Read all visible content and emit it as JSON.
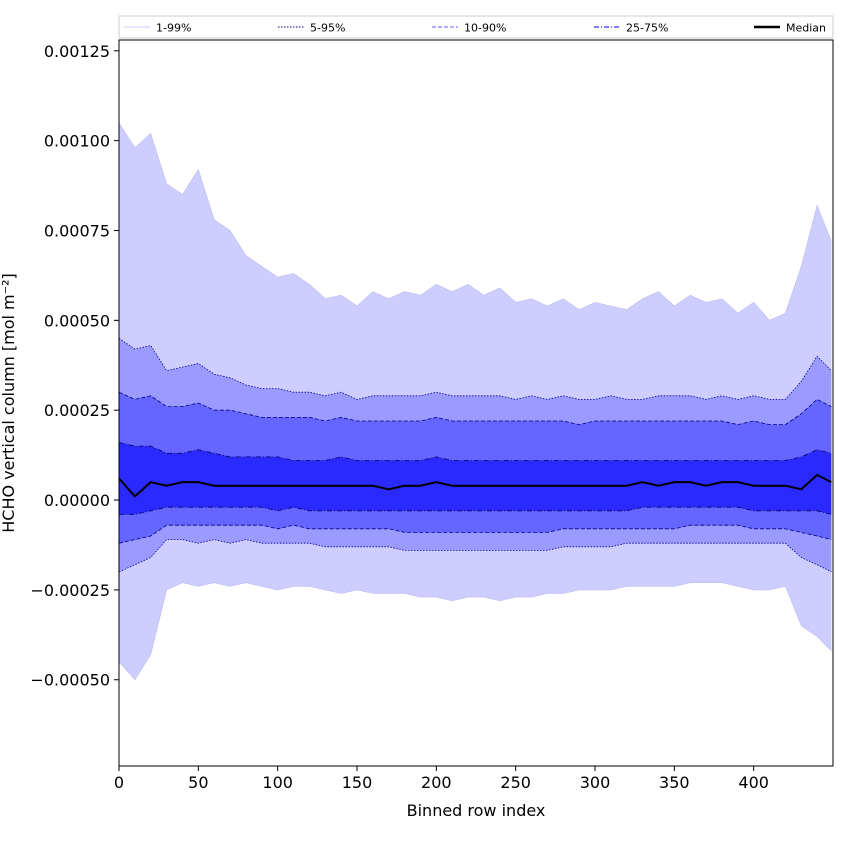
{
  "chart_data": {
    "type": "area",
    "xlabel": "Binned row index",
    "ylabel": "HCHO vertical column [mol m⁻²]",
    "xlim": [
      0,
      450
    ],
    "ylim": [
      -0.00074,
      0.00128
    ],
    "x_ticks": [
      0,
      50,
      100,
      150,
      200,
      250,
      300,
      350,
      400
    ],
    "x_tick_labels": [
      "0",
      "50",
      "100",
      "150",
      "200",
      "250",
      "300",
      "350",
      "400"
    ],
    "y_ticks": [
      -0.0005,
      -0.00025,
      0.0,
      0.00025,
      0.0005,
      0.00075,
      0.001,
      0.00125
    ],
    "y_tick_labels": [
      "−0.00050",
      "−0.00025",
      "0.00000",
      "0.00025",
      "0.00050",
      "0.00075",
      "0.00100",
      "0.00125"
    ],
    "grid": false,
    "legend_position": "top, above plot, single row",
    "legend": [
      {
        "label": "1-99%",
        "color": "#cdcdf8",
        "style": "solid-thin"
      },
      {
        "label": "5-95%",
        "color": "#00008b",
        "style": "dotted"
      },
      {
        "label": "10-90%",
        "color": "#8080ff",
        "style": "dashed"
      },
      {
        "label": "25-75%",
        "color": "#3030ff",
        "style": "dashdot"
      },
      {
        "label": "Median",
        "color": "#000000",
        "style": "solid-thick"
      }
    ],
    "band_colors": {
      "p1_99": "#cdcdff",
      "p5_95": "#9a9aff",
      "p10_90": "#6565ff",
      "p25_75": "#2a2aff",
      "median": "#000000"
    },
    "x": [
      0,
      10,
      20,
      30,
      40,
      50,
      60,
      70,
      80,
      90,
      100,
      110,
      120,
      130,
      140,
      150,
      160,
      170,
      180,
      190,
      200,
      210,
      220,
      230,
      240,
      250,
      260,
      270,
      280,
      290,
      300,
      310,
      320,
      330,
      340,
      350,
      360,
      370,
      380,
      390,
      400,
      410,
      420,
      430,
      440,
      449
    ],
    "series": [
      {
        "name": "1-99%",
        "lower": [
          -0.00045,
          -0.0005,
          -0.00043,
          -0.00025,
          -0.00023,
          -0.00024,
          -0.00023,
          -0.00024,
          -0.00023,
          -0.00024,
          -0.00025,
          -0.00024,
          -0.00024,
          -0.00025,
          -0.00026,
          -0.00025,
          -0.00026,
          -0.00026,
          -0.00026,
          -0.00027,
          -0.00027,
          -0.00028,
          -0.00027,
          -0.00027,
          -0.00028,
          -0.00027,
          -0.00027,
          -0.00026,
          -0.00026,
          -0.00025,
          -0.00025,
          -0.00025,
          -0.00024,
          -0.00024,
          -0.00024,
          -0.00024,
          -0.00023,
          -0.00023,
          -0.00023,
          -0.00024,
          -0.00025,
          -0.00025,
          -0.00024,
          -0.00035,
          -0.00038,
          -0.00042
        ],
        "upper": [
          0.00105,
          0.00098,
          0.00102,
          0.00088,
          0.00085,
          0.00092,
          0.00078,
          0.00075,
          0.00068,
          0.00065,
          0.00062,
          0.00063,
          0.0006,
          0.00056,
          0.00057,
          0.00054,
          0.00058,
          0.00056,
          0.00058,
          0.00057,
          0.0006,
          0.00058,
          0.0006,
          0.00057,
          0.00059,
          0.00055,
          0.00056,
          0.00054,
          0.00056,
          0.00053,
          0.00055,
          0.00054,
          0.00053,
          0.00056,
          0.00058,
          0.00054,
          0.00057,
          0.00055,
          0.00056,
          0.00052,
          0.00055,
          0.0005,
          0.00052,
          0.00065,
          0.00082,
          0.00072
        ]
      },
      {
        "name": "5-95%",
        "lower": [
          -0.0002,
          -0.00018,
          -0.00016,
          -0.00011,
          -0.00011,
          -0.00012,
          -0.00011,
          -0.00012,
          -0.00011,
          -0.00012,
          -0.00012,
          -0.00012,
          -0.00012,
          -0.00013,
          -0.00013,
          -0.00013,
          -0.00013,
          -0.00013,
          -0.00014,
          -0.00014,
          -0.00014,
          -0.00014,
          -0.00014,
          -0.00014,
          -0.00014,
          -0.00014,
          -0.00014,
          -0.00014,
          -0.00013,
          -0.00013,
          -0.00013,
          -0.00013,
          -0.00012,
          -0.00012,
          -0.00012,
          -0.00012,
          -0.00012,
          -0.00012,
          -0.00012,
          -0.00012,
          -0.00012,
          -0.00012,
          -0.00012,
          -0.00016,
          -0.00018,
          -0.0002
        ],
        "upper": [
          0.00045,
          0.00042,
          0.00043,
          0.00036,
          0.00037,
          0.00038,
          0.00035,
          0.00034,
          0.00032,
          0.00031,
          0.00031,
          0.0003,
          0.0003,
          0.00029,
          0.0003,
          0.00028,
          0.00029,
          0.00029,
          0.00029,
          0.00029,
          0.0003,
          0.00029,
          0.00029,
          0.00029,
          0.00029,
          0.00028,
          0.00029,
          0.00028,
          0.00029,
          0.00028,
          0.00028,
          0.00029,
          0.00028,
          0.00028,
          0.00029,
          0.00029,
          0.00029,
          0.00028,
          0.00029,
          0.00028,
          0.00029,
          0.00028,
          0.00028,
          0.00033,
          0.0004,
          0.00036
        ]
      },
      {
        "name": "10-90%",
        "lower": [
          -0.00012,
          -0.00011,
          -0.0001,
          -7e-05,
          -7e-05,
          -7e-05,
          -7e-05,
          -7e-05,
          -7e-05,
          -7e-05,
          -8e-05,
          -7e-05,
          -8e-05,
          -8e-05,
          -8e-05,
          -8e-05,
          -8e-05,
          -8e-05,
          -9e-05,
          -9e-05,
          -9e-05,
          -9e-05,
          -9e-05,
          -9e-05,
          -9e-05,
          -9e-05,
          -9e-05,
          -9e-05,
          -8e-05,
          -8e-05,
          -8e-05,
          -8e-05,
          -8e-05,
          -8e-05,
          -8e-05,
          -8e-05,
          -7e-05,
          -7e-05,
          -7e-05,
          -7e-05,
          -8e-05,
          -8e-05,
          -8e-05,
          -9e-05,
          -0.0001,
          -0.00011
        ],
        "upper": [
          0.0003,
          0.00028,
          0.00029,
          0.00026,
          0.00026,
          0.00027,
          0.00025,
          0.00025,
          0.00024,
          0.00023,
          0.00023,
          0.00023,
          0.00023,
          0.00022,
          0.00023,
          0.00022,
          0.00022,
          0.00022,
          0.00022,
          0.00022,
          0.00023,
          0.00022,
          0.00022,
          0.00022,
          0.00022,
          0.00022,
          0.00022,
          0.00022,
          0.00022,
          0.00021,
          0.00022,
          0.00022,
          0.00022,
          0.00022,
          0.00022,
          0.00022,
          0.00022,
          0.00022,
          0.00022,
          0.00021,
          0.00022,
          0.00021,
          0.00021,
          0.00024,
          0.00028,
          0.00026
        ]
      },
      {
        "name": "25-75%",
        "lower": [
          -4e-05,
          -4e-05,
          -3e-05,
          -2e-05,
          -2e-05,
          -2e-05,
          -2e-05,
          -2e-05,
          -2e-05,
          -2e-05,
          -3e-05,
          -2e-05,
          -3e-05,
          -3e-05,
          -3e-05,
          -3e-05,
          -3e-05,
          -3e-05,
          -3e-05,
          -3e-05,
          -3e-05,
          -3e-05,
          -3e-05,
          -3e-05,
          -3e-05,
          -3e-05,
          -3e-05,
          -3e-05,
          -3e-05,
          -3e-05,
          -3e-05,
          -3e-05,
          -3e-05,
          -2e-05,
          -2e-05,
          -2e-05,
          -2e-05,
          -2e-05,
          -2e-05,
          -2e-05,
          -3e-05,
          -3e-05,
          -3e-05,
          -3e-05,
          -3e-05,
          -4e-05
        ],
        "upper": [
          0.00016,
          0.00015,
          0.00015,
          0.00013,
          0.00013,
          0.00014,
          0.00013,
          0.00012,
          0.00012,
          0.00012,
          0.00012,
          0.00011,
          0.00011,
          0.00011,
          0.00012,
          0.00011,
          0.00011,
          0.00011,
          0.00011,
          0.00011,
          0.00012,
          0.00011,
          0.00011,
          0.00011,
          0.00011,
          0.00011,
          0.00011,
          0.00011,
          0.00011,
          0.00011,
          0.00011,
          0.00011,
          0.00011,
          0.00011,
          0.00011,
          0.00011,
          0.00011,
          0.00011,
          0.00011,
          0.00011,
          0.00011,
          0.00011,
          0.00011,
          0.00012,
          0.00014,
          0.00013
        ]
      },
      {
        "name": "Median",
        "values": [
          6e-05,
          1e-05,
          5e-05,
          4e-05,
          5e-05,
          5e-05,
          4e-05,
          4e-05,
          4e-05,
          4e-05,
          4e-05,
          4e-05,
          4e-05,
          4e-05,
          4e-05,
          4e-05,
          4e-05,
          3e-05,
          4e-05,
          4e-05,
          5e-05,
          4e-05,
          4e-05,
          4e-05,
          4e-05,
          4e-05,
          4e-05,
          4e-05,
          4e-05,
          4e-05,
          4e-05,
          4e-05,
          4e-05,
          5e-05,
          4e-05,
          5e-05,
          5e-05,
          4e-05,
          5e-05,
          5e-05,
          4e-05,
          4e-05,
          4e-05,
          3e-05,
          7e-05,
          5e-05
        ]
      }
    ]
  }
}
